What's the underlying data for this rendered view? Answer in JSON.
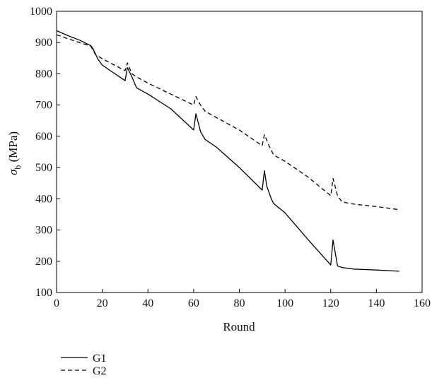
{
  "chart_data": {
    "type": "line",
    "xlabel": "Round",
    "ylabel_main": "σ",
    "ylabel_sub": "b",
    "ylabel_unit": " (MPa)",
    "xlim": [
      0,
      160
    ],
    "ylim": [
      100,
      1000
    ],
    "xticks": [
      0,
      20,
      40,
      60,
      80,
      100,
      120,
      140,
      160
    ],
    "yticks": [
      100,
      200,
      300,
      400,
      500,
      600,
      700,
      800,
      900,
      1000
    ],
    "grid": false,
    "legend_position": "bottom-left",
    "series": [
      {
        "name": "G1",
        "style": "solid",
        "color": "#000000",
        "x": [
          0,
          5,
          10,
          15,
          16,
          18,
          20,
          30,
          31,
          33,
          35,
          40,
          50,
          60,
          61,
          63,
          65,
          70,
          80,
          90,
          91,
          92,
          94,
          95,
          100,
          110,
          120,
          121,
          123,
          125,
          130,
          140,
          150
        ],
        "y": [
          938,
          922,
          908,
          890,
          880,
          848,
          828,
          778,
          820,
          790,
          755,
          735,
          688,
          620,
          672,
          615,
          590,
          565,
          500,
          428,
          490,
          440,
          400,
          385,
          355,
          270,
          188,
          268,
          185,
          180,
          175,
          172,
          168
        ]
      },
      {
        "name": "G2",
        "style": "dashed",
        "color": "#000000",
        "x": [
          0,
          5,
          10,
          15,
          17,
          20,
          30,
          31,
          33,
          35,
          40,
          50,
          60,
          61,
          63,
          65,
          70,
          80,
          90,
          91,
          93,
          95,
          100,
          110,
          120,
          121,
          123,
          125,
          130,
          140,
          150
        ],
        "y": [
          925,
          912,
          900,
          888,
          862,
          848,
          810,
          835,
          800,
          790,
          770,
          735,
          700,
          727,
          700,
          680,
          660,
          620,
          570,
          605,
          570,
          540,
          520,
          470,
          410,
          465,
          410,
          390,
          383,
          375,
          365
        ]
      }
    ]
  }
}
